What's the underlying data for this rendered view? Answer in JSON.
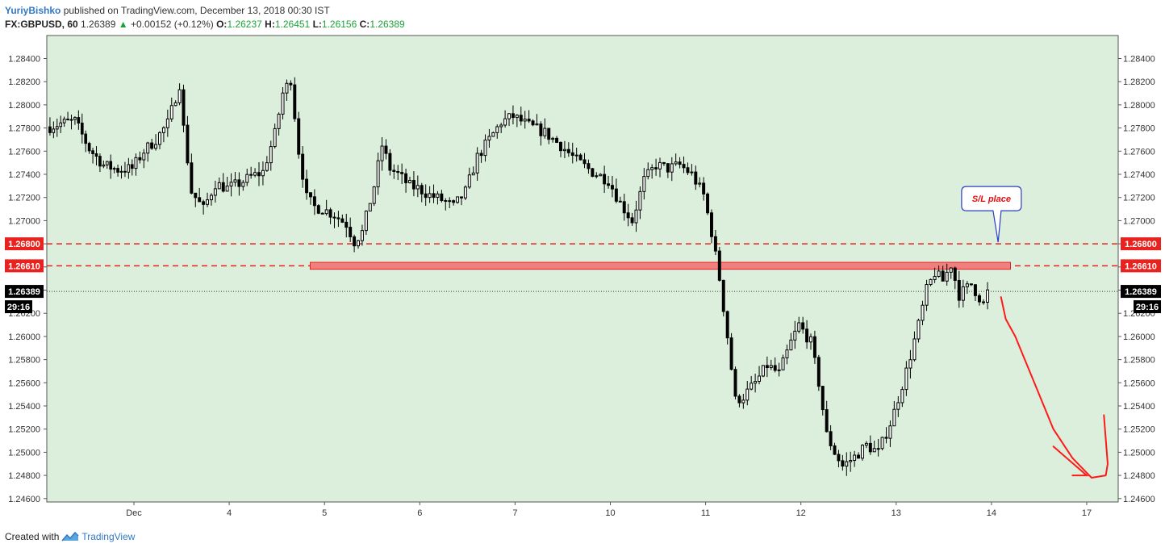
{
  "header": {
    "author": "YuriyBishko",
    "published": "published on TradingView.com, December 13, 2018 00:30 IST",
    "symbol": "FX:GBPUSD, 60",
    "last": "1.26389",
    "change": "+0.00152 (+0.12%)",
    "o_label": "O:",
    "o_value": "1.26237",
    "h_label": "H:",
    "h_value": "1.26451",
    "l_label": "L:",
    "l_value": "1.26156",
    "c_label": "C:",
    "c_value": "1.26389"
  },
  "footer": {
    "created_with": "Created with",
    "brand": "TradingView"
  },
  "colors": {
    "plot_bg": "#dcefdc",
    "candle": "#000000",
    "level_line": "#e8231f",
    "zone_fill": "#f08080",
    "price_tag": "#000000",
    "arrow": "#ff1a1a",
    "callout_border": "#2a3cc0",
    "callout_text": "#e01010"
  },
  "chart_data": {
    "type": "candlestick",
    "symbol": "FX:GBPUSD",
    "interval": "60",
    "ylim": [
      1.2458,
      1.2853
    ],
    "y_ticks": [
      "1.24600",
      "1.24800",
      "1.25000",
      "1.25200",
      "1.25400",
      "1.25600",
      "1.25800",
      "1.26000",
      "1.26200",
      "1.26400",
      "1.26600",
      "1.26800",
      "1.27000",
      "1.27200",
      "1.27400",
      "1.27600",
      "1.27800",
      "1.28000",
      "1.28200",
      "1.28400"
    ],
    "x_ticks": [
      "Dec",
      "4",
      "5",
      "6",
      "7",
      "10",
      "11",
      "12",
      "13",
      "14",
      "17"
    ],
    "candle_segments": [
      {
        "from_day": -0.9,
        "to_day": 0.0,
        "n": 24,
        "points": [
          [
            0,
            1.278
          ],
          [
            4,
            1.2784
          ],
          [
            8,
            1.2786
          ],
          [
            12,
            1.2762
          ],
          [
            16,
            1.2748
          ],
          [
            20,
            1.2744
          ],
          [
            24,
            1.2745
          ]
        ]
      },
      {
        "from_day": 0.0,
        "to_day": 1.0,
        "n": 24,
        "points": [
          [
            0,
            1.2745
          ],
          [
            3,
            1.276
          ],
          [
            6,
            1.277
          ],
          [
            9,
            1.2784
          ],
          [
            12,
            1.2818
          ],
          [
            13,
            1.278
          ],
          [
            15,
            1.2725
          ],
          [
            18,
            1.271
          ],
          [
            21,
            1.2732
          ],
          [
            24,
            1.2728
          ]
        ]
      },
      {
        "from_day": 1.0,
        "to_day": 2.0,
        "n": 24,
        "points": [
          [
            0,
            1.2728
          ],
          [
            3,
            1.2732
          ],
          [
            6,
            1.2738
          ],
          [
            9,
            1.2742
          ],
          [
            12,
            1.2775
          ],
          [
            14,
            1.281
          ],
          [
            16,
            1.2822
          ],
          [
            18,
            1.276
          ],
          [
            20,
            1.272
          ],
          [
            22,
            1.2712
          ],
          [
            24,
            1.271
          ]
        ]
      },
      {
        "from_day": 2.0,
        "to_day": 3.0,
        "n": 24,
        "points": [
          [
            0,
            1.271
          ],
          [
            3,
            1.2705
          ],
          [
            6,
            1.2697
          ],
          [
            8,
            1.2682
          ],
          [
            10,
            1.269
          ],
          [
            13,
            1.273
          ],
          [
            15,
            1.2765
          ],
          [
            17,
            1.2745
          ],
          [
            19,
            1.274
          ],
          [
            22,
            1.273
          ],
          [
            24,
            1.2728
          ]
        ]
      },
      {
        "from_day": 3.0,
        "to_day": 4.0,
        "n": 24,
        "points": [
          [
            0,
            1.2728
          ],
          [
            3,
            1.2722
          ],
          [
            6,
            1.2718
          ],
          [
            9,
            1.2712
          ],
          [
            12,
            1.2725
          ],
          [
            15,
            1.2755
          ],
          [
            18,
            1.277
          ],
          [
            21,
            1.2785
          ],
          [
            24,
            1.279
          ]
        ]
      },
      {
        "from_day": 4.0,
        "to_day": 5.0,
        "n": 24,
        "points": [
          [
            0,
            1.279
          ],
          [
            4,
            1.2782
          ],
          [
            8,
            1.2776
          ],
          [
            12,
            1.2765
          ],
          [
            16,
            1.2752
          ],
          [
            20,
            1.2742
          ],
          [
            24,
            1.2735
          ]
        ]
      },
      {
        "from_day": 5.0,
        "to_day": 6.0,
        "n": 24,
        "points": [
          [
            0,
            1.2735
          ],
          [
            3,
            1.2715
          ],
          [
            6,
            1.27
          ],
          [
            9,
            1.2735
          ],
          [
            12,
            1.2748
          ],
          [
            15,
            1.2745
          ],
          [
            18,
            1.2748
          ],
          [
            21,
            1.274
          ],
          [
            24,
            1.2722
          ]
        ]
      },
      {
        "from_day": 6.0,
        "to_day": 7.0,
        "n": 24,
        "points": [
          [
            0,
            1.2722
          ],
          [
            2,
            1.269
          ],
          [
            4,
            1.265
          ],
          [
            6,
            1.26
          ],
          [
            8,
            1.2545
          ],
          [
            10,
            1.2548
          ],
          [
            13,
            1.256
          ],
          [
            16,
            1.2575
          ],
          [
            19,
            1.2568
          ],
          [
            22,
            1.2595
          ],
          [
            24,
            1.261
          ]
        ]
      },
      {
        "from_day": 7.0,
        "to_day": 8.0,
        "n": 24,
        "points": [
          [
            0,
            1.261
          ],
          [
            3,
            1.2595
          ],
          [
            5,
            1.256
          ],
          [
            7,
            1.2515
          ],
          [
            9,
            1.25
          ],
          [
            11,
            1.2488
          ],
          [
            14,
            1.2496
          ],
          [
            17,
            1.2506
          ],
          [
            20,
            1.25
          ],
          [
            23,
            1.2525
          ],
          [
            24,
            1.2535
          ]
        ]
      },
      {
        "from_day": 8.0,
        "to_day": 8.98,
        "n": 23,
        "points": [
          [
            0,
            1.2535
          ],
          [
            3,
            1.257
          ],
          [
            6,
            1.261
          ],
          [
            8,
            1.264
          ],
          [
            10,
            1.2655
          ],
          [
            12,
            1.2648
          ],
          [
            14,
            1.2662
          ],
          [
            16,
            1.2636
          ],
          [
            19,
            1.2645
          ],
          [
            22,
            1.2628
          ],
          [
            23,
            1.2638
          ]
        ]
      }
    ],
    "levels": [
      {
        "price": 1.268,
        "label": "1.26800",
        "style": "dashed"
      },
      {
        "price": 1.2661,
        "label": "1.26610",
        "style": "dashed"
      }
    ],
    "current_price": {
      "value": 1.26389,
      "label": "1.26389",
      "countdown": "29:16"
    },
    "zone": {
      "from_day": 1.85,
      "to_day": 9.2,
      "price_low": 1.2658,
      "price_high": 1.2664
    },
    "annotations": [
      {
        "text": "S/L place",
        "day": 9.0,
        "price": 1.2719,
        "points_to_price": 1.268
      }
    ],
    "projection": {
      "points": [
        [
          9.1,
          1.2634
        ],
        [
          9.15,
          1.2615
        ],
        [
          9.25,
          1.26
        ],
        [
          9.45,
          1.256
        ],
        [
          9.65,
          1.252
        ],
        [
          9.85,
          1.2495
        ],
        [
          10.05,
          1.2478
        ],
        [
          10.2,
          1.248
        ],
        [
          10.22,
          1.249
        ],
        [
          10.18,
          1.2532
        ]
      ],
      "arrowhead": [
        [
          9.65,
          1.2505
        ],
        [
          10.0,
          1.248
        ],
        [
          9.85,
          1.248
        ]
      ]
    },
    "grid": false,
    "legend": "none"
  }
}
